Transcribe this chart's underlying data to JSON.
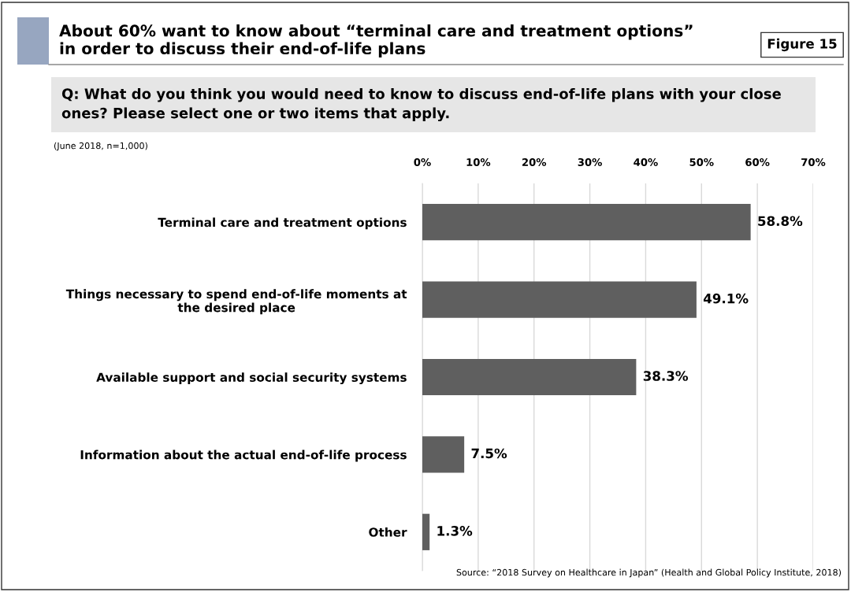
{
  "chart_data": {
    "type": "bar",
    "orientation": "horizontal",
    "title": "About 60% want to know about “terminal care and treatment options”\nin order to discuss their end-of-life plans",
    "subtitle": "Q: What do you think you would need to know to discuss end-of-life plans with your close\nones? Please select one or two items that apply.",
    "annotations": [
      "Figure 15",
      "(June 2018, n=1,000)",
      "Source: “2018 Survey on Healthcare in Japan” (Health and Global Policy Institute, 2018)"
    ],
    "categories": [
      "Terminal care and treatment options",
      "Things necessary to spend end-of-life moments at\nthe desired place",
      "Available support and social security systems",
      "Information about the actual end-of-life process",
      "Other"
    ],
    "values": [
      58.8,
      49.1,
      38.3,
      7.5,
      1.3
    ],
    "value_labels": [
      "58.8%",
      "49.1%",
      "38.3%",
      "7.5%",
      "1.3%"
    ],
    "color": "#5f5f5f",
    "xlim": [
      0,
      70
    ],
    "xticks": [
      {
        "value": 0,
        "label": "0%"
      },
      {
        "value": 10,
        "label": "10%"
      },
      {
        "value": 20,
        "label": "20%"
      },
      {
        "value": 30,
        "label": "30%"
      },
      {
        "value": 40,
        "label": "40%"
      },
      {
        "value": 50,
        "label": "50%"
      },
      {
        "value": 60,
        "label": "60%"
      },
      {
        "value": 70,
        "label": "70%"
      }
    ],
    "grid": "x",
    "legend": false
  }
}
